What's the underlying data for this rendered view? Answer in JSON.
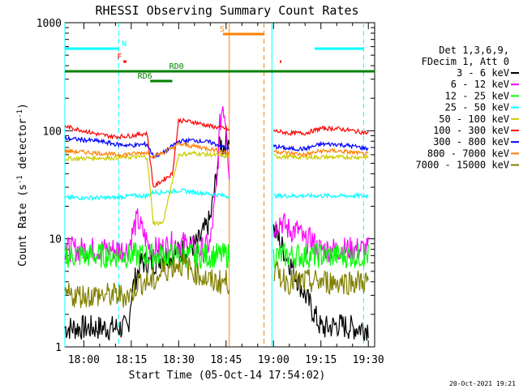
{
  "chart_data": {
    "type": "line",
    "title": "RHESSI Observing Summary Count Rates",
    "xlabel": "Start Time (05-Oct-14 17:54:02)",
    "ylabel_main": "Count Rate (s",
    "ylabel_sup1": "-1",
    "ylabel_mid": " detector",
    "ylabel_sup2": "-1",
    "ylabel_end": ")",
    "yscale": "log",
    "ylim": [
      1,
      1000
    ],
    "xlim_minutes": [
      -6,
      92
    ],
    "x_ticks": [
      {
        "m": 0,
        "label": "18:00"
      },
      {
        "m": 15,
        "label": "18:15"
      },
      {
        "m": 30,
        "label": "18:30"
      },
      {
        "m": 45,
        "label": "18:45"
      },
      {
        "m": 60,
        "label": "19:00"
      },
      {
        "m": 75,
        "label": "19:15"
      },
      {
        "m": 90,
        "label": "19:30"
      }
    ],
    "y_ticks": [
      {
        "v": 1,
        "label": "1"
      },
      {
        "v": 10,
        "label": "10"
      },
      {
        "v": 100,
        "label": "100"
      },
      {
        "v": 1000,
        "label": "1000"
      }
    ],
    "legend_header": [
      "Det 1,3,6,9,",
      "FDecim 1, Att 0"
    ],
    "legend_placement": "right",
    "series": [
      {
        "name": "3 - 6 keV",
        "color": "#000000",
        "x": [
          -6,
          14,
          15,
          16,
          18,
          20,
          22,
          25,
          28,
          32,
          36,
          40,
          42,
          43,
          44,
          46,
          75,
          77,
          80,
          85,
          88,
          90
        ],
        "y": [
          1.5,
          1.5,
          3,
          4,
          6,
          6,
          6,
          7,
          7,
          8,
          9,
          15,
          40,
          80,
          70,
          90,
          1.5,
          1.5,
          1.6,
          1.5,
          1.5,
          1.5
        ]
      },
      {
        "name": "6 - 12 keV",
        "color": "#ff00ff",
        "x": [
          -6,
          14,
          16,
          17,
          19,
          21,
          24,
          28,
          32,
          35,
          38,
          40,
          42,
          43,
          44,
          45,
          46,
          60,
          62,
          65,
          68,
          70,
          72,
          74,
          75,
          80,
          90
        ],
        "y": [
          8,
          8,
          13,
          15,
          11,
          8,
          8,
          9,
          9,
          8,
          8,
          9,
          30,
          110,
          180,
          120,
          40,
          12,
          15,
          12,
          12,
          9,
          10,
          8,
          8,
          8,
          8
        ]
      },
      {
        "name": "12 - 25 keV",
        "color": "#00ff00",
        "x": [
          -6,
          5,
          10,
          15,
          20,
          25,
          30,
          35,
          40,
          45,
          60,
          65,
          70,
          75,
          80,
          85,
          90
        ],
        "y": [
          7,
          7,
          7,
          7,
          7,
          7,
          7,
          7,
          7,
          7,
          7,
          7,
          7,
          7,
          7,
          7,
          7
        ]
      },
      {
        "name": "25 - 50 keV",
        "color": "#00ffff",
        "x": [
          -6,
          5,
          10,
          15,
          20,
          22,
          25,
          30,
          35,
          40,
          45,
          46,
          60,
          65,
          70,
          75,
          80,
          85,
          90
        ],
        "y": [
          24,
          24,
          24,
          25,
          25,
          27,
          27,
          28,
          27,
          26,
          25,
          25,
          25,
          25,
          25,
          25,
          25,
          25,
          25
        ]
      },
      {
        "name": "50 - 100 keV",
        "color": "#cccc00",
        "x": [
          -6,
          5,
          10,
          15,
          20,
          22,
          25,
          30,
          35,
          40,
          45,
          46,
          60,
          65,
          70,
          75,
          80,
          85,
          90
        ],
        "y": [
          55,
          56,
          56,
          57,
          57,
          14,
          14,
          60,
          62,
          60,
          58,
          58,
          58,
          57,
          57,
          57,
          57,
          57,
          57
        ]
      },
      {
        "name": "100 - 300 keV",
        "color": "#ff0000",
        "x": [
          -6,
          0,
          5,
          10,
          15,
          20,
          22,
          25,
          28,
          30,
          35,
          40,
          45,
          46,
          60,
          65,
          70,
          75,
          80,
          85,
          90
        ],
        "y": [
          110,
          100,
          92,
          88,
          90,
          95,
          30,
          35,
          40,
          125,
          120,
          110,
          105,
          100,
          100,
          95,
          95,
          105,
          105,
          100,
          95
        ]
      },
      {
        "name": "300 - 800 keV",
        "color": "#0000ff",
        "x": [
          -6,
          5,
          10,
          15,
          20,
          22,
          25,
          30,
          35,
          40,
          45,
          46,
          60,
          65,
          70,
          75,
          80,
          85,
          90
        ],
        "y": [
          85,
          80,
          75,
          73,
          75,
          58,
          62,
          80,
          82,
          78,
          70,
          68,
          72,
          68,
          68,
          75,
          75,
          72,
          68
        ]
      },
      {
        "name": "800 - 7000 keV",
        "color": "#ff8000",
        "x": [
          -6,
          5,
          10,
          15,
          20,
          22,
          25,
          30,
          35,
          40,
          45,
          46,
          60,
          65,
          70,
          75,
          80,
          85,
          90
        ],
        "y": [
          65,
          62,
          60,
          61,
          63,
          58,
          62,
          75,
          72,
          68,
          63,
          62,
          65,
          62,
          60,
          65,
          65,
          63,
          60
        ]
      },
      {
        "name": "7000 - 15000 keV",
        "color": "#808000",
        "x": [
          -6,
          5,
          10,
          15,
          17,
          20,
          22,
          25,
          30,
          35,
          40,
          45,
          46,
          60,
          65,
          70,
          75,
          80,
          85,
          90
        ],
        "y": [
          3,
          3,
          3,
          3,
          4,
          4,
          4,
          5,
          6,
          5,
          4,
          4,
          4,
          5,
          4,
          4,
          4,
          4,
          4,
          4
        ]
      }
    ],
    "vlines": [
      {
        "m": -6,
        "color": "#00ffff",
        "style": "solid"
      },
      {
        "m": 11,
        "color": "#00ffff",
        "style": "dashed"
      },
      {
        "m": 46,
        "color": "#ff8000",
        "style": "solid"
      },
      {
        "m": 57,
        "color": "#ff8000",
        "style": "dashed"
      },
      {
        "m": 59.5,
        "color": "#00ffff",
        "style": "solid"
      },
      {
        "m": 88.5,
        "color": "#00ffff",
        "style": "dashed"
      }
    ],
    "state_bars": [
      {
        "label": "N",
        "color": "#00ffff",
        "segments": [
          [
            -6,
            11
          ],
          [
            73,
            88.5
          ]
        ],
        "level": 0.92,
        "label_at": 12
      },
      {
        "label": "S",
        "color": "#ff8000",
        "segments": [
          [
            44,
            57
          ]
        ],
        "level": 0.965,
        "label_at": 43
      },
      {
        "label": "F",
        "color": "#ff0000",
        "segments": [
          [
            12.5,
            13.5
          ],
          [
            62,
            62.5
          ]
        ],
        "level": 0.88,
        "label_at": 10.5
      },
      {
        "label": "RD0",
        "color": "#008000",
        "segments": [
          [
            -6,
            92
          ]
        ],
        "level": 0.85,
        "label_at": 27
      },
      {
        "label": "RD6",
        "color": "#008000",
        "segments": [
          [
            21,
            28
          ]
        ],
        "level": 0.82,
        "label_at": 17
      }
    ],
    "footer_date": "20-Oct-2021 19:21"
  }
}
